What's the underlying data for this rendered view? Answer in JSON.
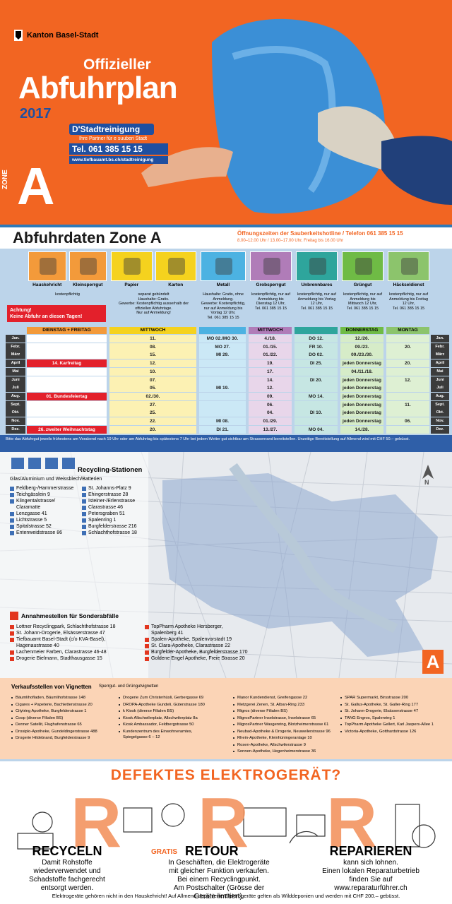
{
  "header": {
    "canton": "Kanton Basel-Stadt",
    "subtitle": "Offizieller",
    "title": "Abfuhrplan",
    "year": "2017",
    "org": "D'Stadtreinigung",
    "tagline": "Ihre Partner für e suuberi Stadt",
    "phone": "Tel. 061 385 15 15",
    "url": "www.tiefbauamt.bs.ch/stadtreinigung",
    "zone_label": "ZONE",
    "zone": "A"
  },
  "schedule": {
    "title": "Abfuhrdaten Zone A",
    "hotline_title": "Öffnungszeiten der Sauberkeitshotline / Telefon 061 385 15 15",
    "hotline_hours": "8.00–12.00 Uhr / 13.00–17.00 Uhr, Freitag bis 16.00 Uhr",
    "groups": [
      {
        "items": [
          "Hauskehricht",
          "Kleinsperrgut"
        ],
        "color": "#f39a3a",
        "tint": "#fbe1c4",
        "note": "kostenpflichtig",
        "warning": "Achtung!\nKeine Abfuhr an diesen Tagen!",
        "day": "DIENSTAG + FREITAG"
      },
      {
        "items": [
          "Papier",
          "Karton"
        ],
        "color": "#f5d21e",
        "tint": "#fcf1b3",
        "note": "separat gebündelt\nHaushalte: Gratis.\nGewerbe: Kostenpflichtig ausserhalb der offiziellen Abfuhrtage.\nNur auf Anmeldung!",
        "day": "MITTWOCH"
      },
      {
        "items": [
          "Metall"
        ],
        "color": "#4cb2e2",
        "tint": "#cbe8f6",
        "note": "Haushalte: Gratis, ohne Anmeldung.\nGewerbe: Kostenpflichtig, nur auf Anmeldung bis Vortag 12 Uhr,\nTel. 061 385 15 15"
      },
      {
        "items": [
          "Grobsperrgut"
        ],
        "color": "#b07cb8",
        "tint": "#e8d6ea",
        "note": "kostenpflichtig, nur auf Anmeldung bis Dienstag 12 Uhr,\nTel. 061 385 15 15",
        "day": "MITTWOCH"
      },
      {
        "items": [
          "Unbrennbares"
        ],
        "color": "#2ea59c",
        "tint": "#c6e6e3",
        "note": "kostenpflichtig, nur auf Anmeldung bis Vortag 12 Uhr,\nTel. 061 385 15 15"
      },
      {
        "items": [
          "Grüngut"
        ],
        "color": "#6fbb45",
        "tint": "#d6ecc8",
        "note": "kostenpflichtig, nur auf Anmeldung bis Mittwoch 12 Uhr,\nTel. 061 385 15 15",
        "day": "DONNERSTAG"
      },
      {
        "items": [
          "Häckseldienst"
        ],
        "color": "#8cc46c",
        "tint": "#def0d3",
        "note": "kostenpflichtig, nur auf Anmeldung bis Freitag 12 Uhr,\nTel. 061 385 15 15",
        "day": "MONTAG"
      }
    ],
    "rows": [
      {
        "month": "Jan.",
        "cells": [
          null,
          "11.",
          "MO 02./MO 30.",
          "4./18.",
          "DO 12.",
          "12./26.",
          null
        ]
      },
      {
        "month": "Febr.",
        "cells": [
          null,
          "08.",
          "MO 27.",
          "01./15.",
          "FR 10.",
          "09./23.",
          "20."
        ]
      },
      {
        "month": "März",
        "cells": [
          null,
          "15.",
          "MI 29.",
          "01./22.",
          "DO 02.",
          "09./23./30.",
          null
        ]
      },
      {
        "month": "April",
        "cells": [
          "14. Karfreitag",
          "12.",
          null,
          "19.",
          "DI 25.",
          "jeden Donnerstag",
          "20."
        ]
      },
      {
        "month": "Mai",
        "cells": [
          null,
          "10.",
          null,
          "17.",
          null,
          "04./11./18.",
          null
        ]
      },
      {
        "month": "Juni",
        "cells": [
          null,
          "07.",
          null,
          "14.",
          "DI 20.",
          "jeden Donnerstag",
          "12."
        ]
      },
      {
        "month": "Juli",
        "cells": [
          null,
          "05.",
          "MI 19.",
          "12.",
          null,
          "jeden Donnerstag",
          null
        ]
      },
      {
        "month": "Aug.",
        "cells": [
          "01. Bundesfeiertag",
          "02./30.",
          null,
          "09.",
          "MO 14.",
          "jeden Donnerstag",
          null
        ]
      },
      {
        "month": "Sept.",
        "cells": [
          null,
          "27.",
          null,
          "06.",
          null,
          "jeden Donnerstag",
          "11."
        ]
      },
      {
        "month": "Okt.",
        "cells": [
          null,
          "25.",
          null,
          "04.",
          "DI 10.",
          "jeden Donnerstag",
          null
        ]
      },
      {
        "month": "Nov.",
        "cells": [
          null,
          "22.",
          "MI 08.",
          "01./29.",
          null,
          "jeden Donnerstag",
          "06."
        ]
      },
      {
        "month": "Dez.",
        "cells": [
          "26. zweiter Weihnachtstag",
          "20.",
          "DI 21.",
          "13./27.",
          "MO 04.",
          "14./28.",
          null
        ]
      }
    ],
    "footnote": "Bitte das Abfuhrgut jeweils frühestens am Vorabend nach 19 Uhr oder am Abfuhrtag bis spätestens 7 Uhr bei jedem Wetter gut sichtbar am Strassenrand bereitstellen. Unzeitige Bereitstellung auf Allmend wird mit CHF 50.– gebüsst."
  },
  "map": {
    "recycling_title": "Recycling-Stationen",
    "recycling_subtitle": "Glas/Aluminium und Weissblech/Batterien",
    "stations_left": [
      "Feldberg-/Hammerstrasse",
      "Teichgässlein 9",
      "Klingentalstrasse/\nClaramatte",
      "Lenzgasse 41",
      "Lichtstrasse 5",
      "Spitalstrasse 52",
      "Entenweidstrasse 86"
    ],
    "stations_right": [
      "St. Johanns-Platz 9",
      "Ehingerstrasse 28",
      "Isteiner-/Erlenstrasse",
      "Clarastrasse 46",
      "Petersgraben 51",
      "Spalenring 1",
      "Burgfelderstrasse 216",
      "Schlachthofstrasse 18"
    ],
    "special_title": "Annahmestellen für Sonderabfälle",
    "special_left": [
      "Lottner Recyclingpark, Schlachthofstrasse 18",
      "St. Johann-Drogerie, Elsässerstrasse 47",
      "Tiefbauamt Basel-Stadt (c/o KVA-Basel),\nHagenaustrasse 40",
      "Lachenmeier Farben, Clarastrasse 46-48",
      "Drogerie Bielmann, Stadthausgasse 15"
    ],
    "special_right": [
      "TopPharm Apotheke Hersberger,\nSpalenberg 41",
      "Spalen-Apotheke, Spalenvorstadt 19",
      "St. Clara-Apotheke, Clarastrasse 22",
      "Burgfelder-Apotheke, Burgfelderstrasse 170",
      "Goldene Engel Apotheke, Freie Strasse 20"
    ],
    "north": "N",
    "zone": "A"
  },
  "vignettes": {
    "title": "Verkaufsstellen von Vignetten",
    "subtitle": "Sperrgut- und Grüngutvignetten",
    "columns": [
      [
        "Bäumlihofladen, Bäumlihofstrasse 148",
        "Cigares + Papeterie, Bachlettenstrasse 20",
        "Citytring Apotheke, Burgfelderstrasse 1",
        "Coop (diverse Filialen BS)",
        "Denner Satellit, Flughafenstrasse 65",
        "Drosiplo-Apotheke, Gundeldingerstrasse 488",
        "Drogerie Hildebrand, Burgfelderstrasse 9"
      ],
      [
        "Drogerie Zum Christerhüsli, Gerbergasse 69",
        "DROPA-Apotheke Gundeli, Güterstrasse 180",
        "k Kiosk (diverse Filialen BS)",
        "Kiosk Allschwilerplatz, Allschwilerplatz 8a",
        "Kiosk Ambassador, Feldbergstrasse 50",
        "Kundenzentrum des Einwohneramtes,\nSpiegelgasse 6 – 12"
      ],
      [
        "Manor Kundendienst, Greifengasse 22",
        "Metzgerei Zenen, St. Alban-Ring 233",
        "Migros (diverse Filialen BS)",
        "MigrosPartner Inselstrasse, Inselstrasse 65",
        "MigrosPartner Wasgenring, Blotzheimerstrasse 61",
        "Neubad-Apotheke & Drogerie, Neuweilerstrasse 96",
        "Rhein-Apotheke, Kleinhüningeranlage 10",
        "Rosen-Apotheke, Allschwilerstrasse 9",
        "Sonnen-Apotheke, Hegenheimerstrasse 36"
      ],
      [
        "SPAR Supermarkt, Birsstrasse 200",
        "St. Gallus-Apotheke, St. Galler-Ring 177",
        "St. Johann-Drogerie, Elsässerstrasse 47",
        "TANG Engros, Spalenring 1",
        "TopPharm Apotheke Gellert, Karl Jaspers-Allee 1",
        "Victoria-Apotheke, Gotthardstrasse 126"
      ]
    ]
  },
  "electronics": {
    "question": "DEFEKTES ELEKTROGERÄT?",
    "letter": "R",
    "recycle_title": "RECYCELN",
    "recycle_text": "Damit Rohstoffe\nwiederverwendet und\nSchadstoffe fachgerecht\nentsorgt werden.",
    "free": "GRATIS",
    "return_title": "RETOUR",
    "return_text": "In Geschäften, die Elektrogeräte\nmit gleicher Funktion verkaufen.\nBei einem Recyclingpunkt.\nAm Postschalter (Grösse der\nGeräte limitiert).",
    "repair_title": "REPARIEREN",
    "repair_text": "kann sich lohnen.\nEinen lokalen Reparaturbetrieb\nfinden Sie auf\nwww.reparaturführer.ch",
    "footer": "Elektrogeräte gehören nicht in den Hauskehricht! Auf Allmend deponierte Elektrogeräte gelten als Wilddeponien und werden mit CHF 200.– gebüsst."
  }
}
